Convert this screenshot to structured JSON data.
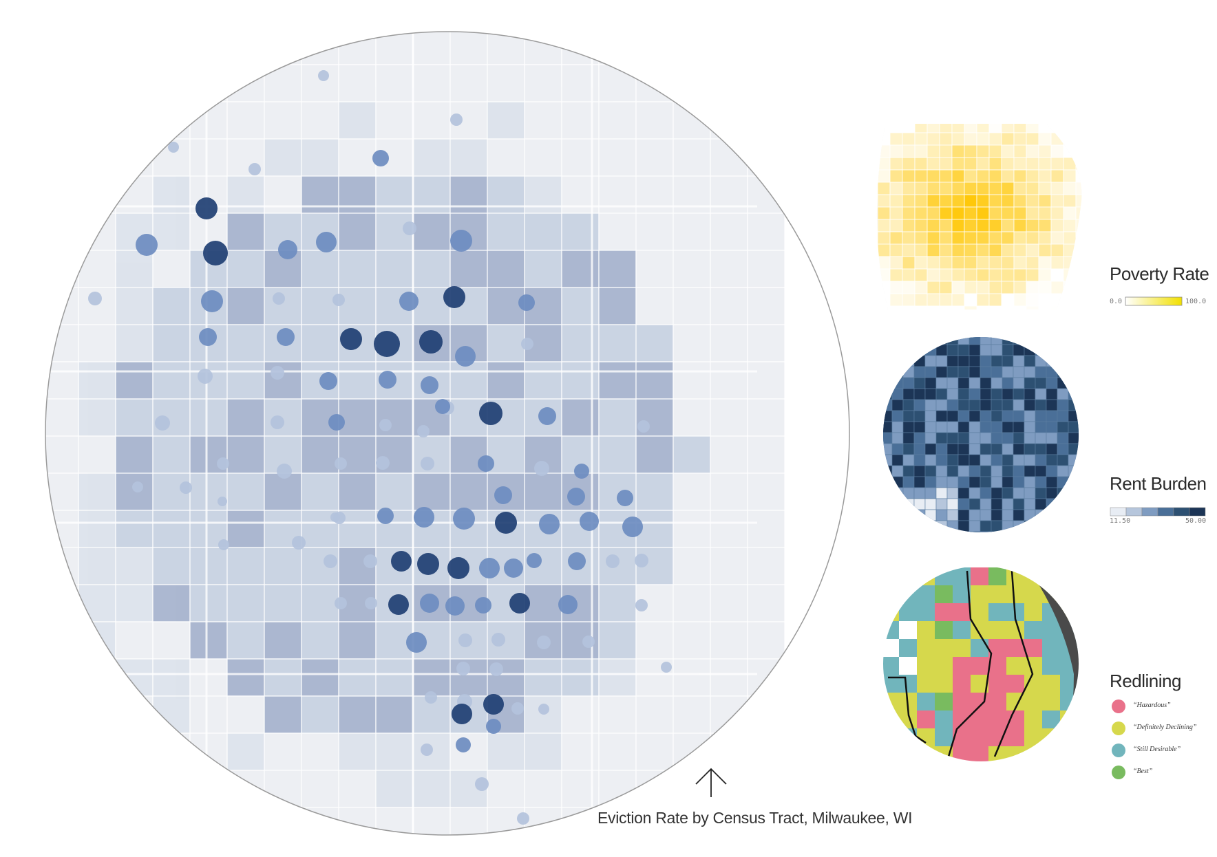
{
  "main_map": {
    "caption": "Eviction Rate by Census Tract, Milwaukee, WI",
    "colors": {
      "land": "#edeff3",
      "tract": "#c9d3e3",
      "tract_dark": "#a8b5cf",
      "border": "#ffffff",
      "dot_scale": [
        "#b3c2dc",
        "#6d8cc0",
        "#1f3f73"
      ]
    }
  },
  "legends": {
    "poverty": {
      "title": "Poverty Rate",
      "min_label": "0.0",
      "max_label": "100.0",
      "colors": [
        "#ffffff",
        "#f2e000"
      ]
    },
    "rent_burden": {
      "title": "Rent Burden",
      "min_label": "11.50",
      "max_label": "50.00",
      "colors": [
        "#e8edf4",
        "#b6c6dc",
        "#7f9cc1",
        "#4a6f98",
        "#2d5072",
        "#1c3556"
      ]
    },
    "redlining": {
      "title": "Redlining",
      "items": [
        {
          "label": "“Hazardous”",
          "color": "#e9718a"
        },
        {
          "label": "“Definitely Declining”",
          "color": "#d6d84c"
        },
        {
          "label": "“Still Desirable”",
          "color": "#71b5bc"
        },
        {
          "label": "“Best”",
          "color": "#79bb5f"
        }
      ]
    }
  }
}
